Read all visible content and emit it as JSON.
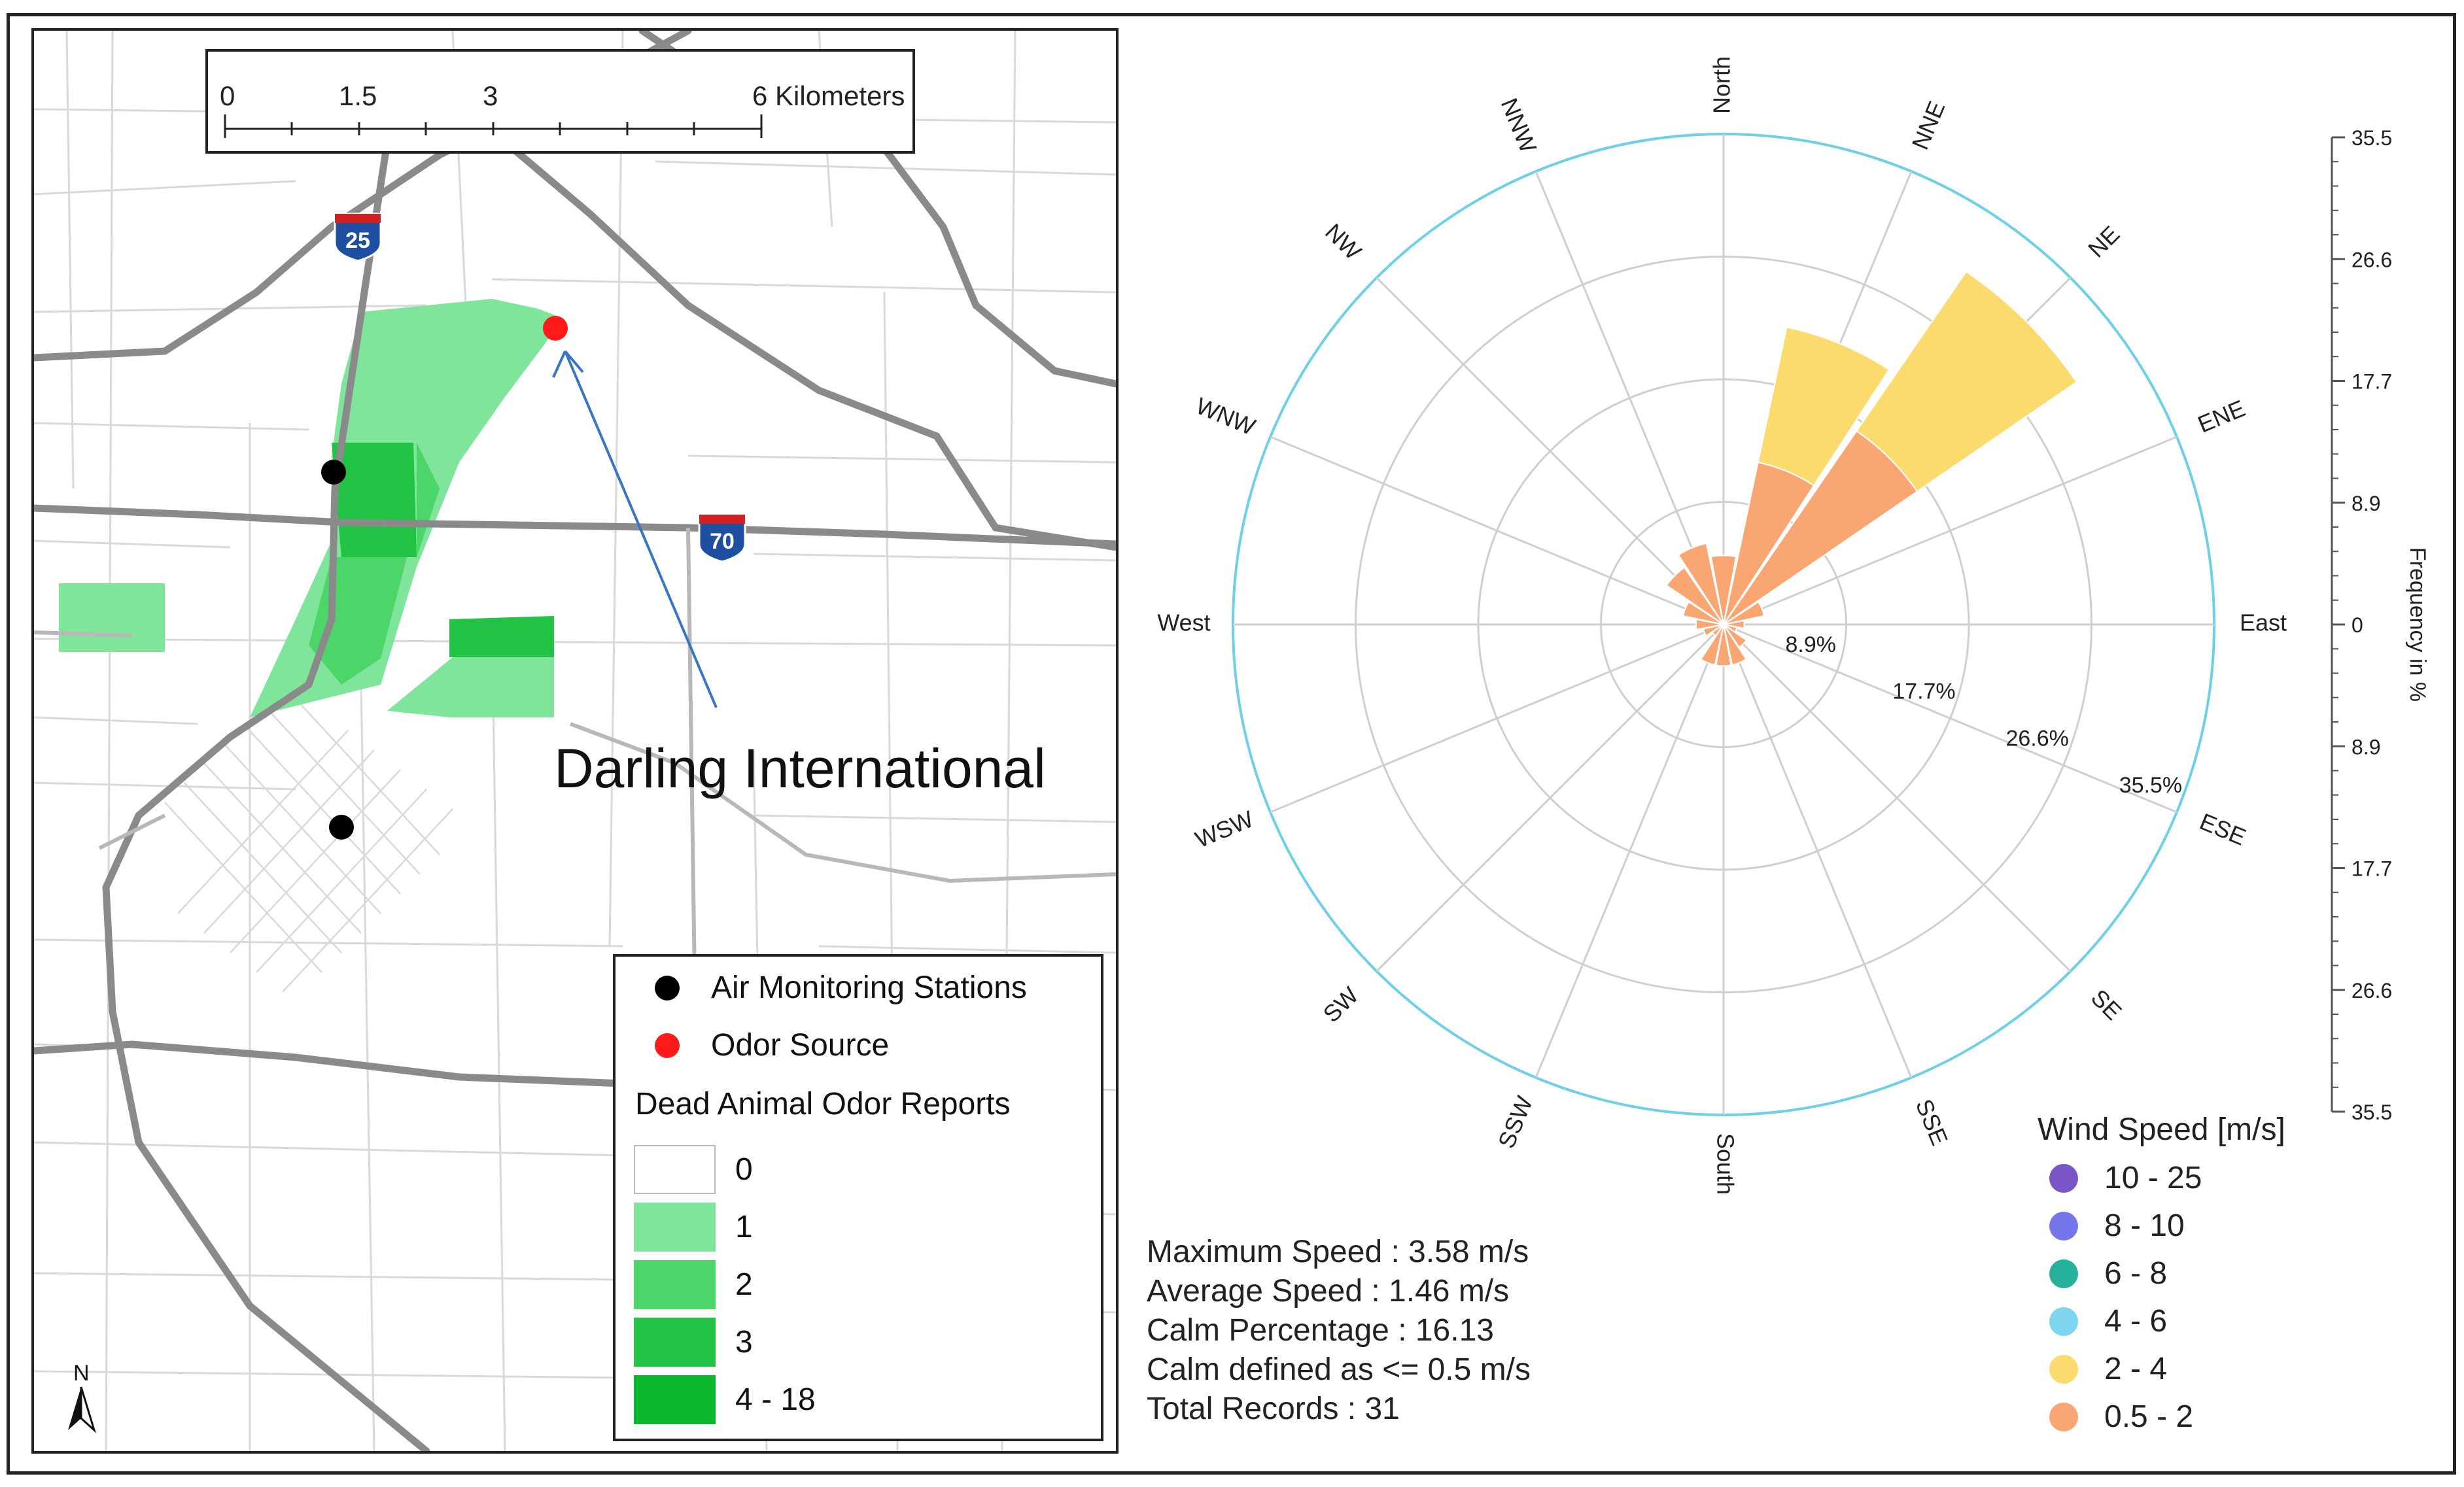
{
  "map": {
    "scale_bar": {
      "ticks": [
        "0",
        "1.5",
        "3",
        "6 Kilometers"
      ]
    },
    "highway_shields": [
      "25",
      "70"
    ],
    "annotation": "Darling International",
    "north_label": "N",
    "legend": {
      "air_monitoring": "Air Monitoring Stations",
      "odor_source": "Odor Source",
      "reports_title": "Dead Animal Odor Reports",
      "classes": [
        {
          "label": "0",
          "color": "#ffffff"
        },
        {
          "label": "1",
          "color": "#7fe59a"
        },
        {
          "label": "2",
          "color": "#4cd66a"
        },
        {
          "label": "3",
          "color": "#22c244"
        },
        {
          "label": "4 - 18",
          "color": "#0ab82e"
        }
      ]
    }
  },
  "chart_data": {
    "type": "wind-rose",
    "directions": [
      "North",
      "NNE",
      "NE",
      "ENE",
      "East",
      "ESE",
      "SE",
      "SSE",
      "South",
      "SSW",
      "SW",
      "WSW",
      "West",
      "WNW",
      "NW",
      "NNW"
    ],
    "ring_labels": [
      "8.9%",
      "17.7%",
      "26.6%",
      "35.5%"
    ],
    "rmax": 35.5,
    "speed_bins": [
      {
        "name": "0.5 - 2",
        "color": "#f9a673",
        "values": [
          5,
          12,
          17,
          3,
          1.5,
          1,
          2,
          3,
          3,
          3,
          1,
          1.5,
          2,
          3,
          5,
          6
        ]
      },
      {
        "name": "2 - 4",
        "color": "#fbdb6e",
        "values": [
          0,
          10,
          14,
          0,
          0,
          0,
          0,
          0,
          0,
          0,
          0,
          0,
          0,
          0,
          0,
          0
        ]
      },
      {
        "name": "4 - 6",
        "color": "#7dd6ee",
        "values": []
      },
      {
        "name": "6 - 8",
        "color": "#24b39a",
        "values": []
      },
      {
        "name": "8 - 10",
        "color": "#7575ec",
        "values": []
      },
      {
        "name": "10 - 25",
        "color": "#7a55c6",
        "values": []
      }
    ],
    "frequency_axis": {
      "label": "Frequency in %",
      "ticks": [
        "35.5",
        "26.6",
        "17.7",
        "8.9",
        "0",
        "8.9",
        "17.7",
        "26.6",
        "35.5"
      ]
    },
    "legend_title": "Wind Speed [m/s]",
    "legend_entries": [
      "10 - 25",
      "8 - 10",
      "6 - 8",
      "4 - 6",
      "2 - 4",
      "0.5 - 2"
    ],
    "legend_colors": [
      "#7a55c6",
      "#7575ec",
      "#24b39a",
      "#7dd6ee",
      "#fbdb6e",
      "#f9a673"
    ]
  },
  "stats": [
    "Maximum Speed : 3.58 m/s",
    "Average Speed : 1.46 m/s",
    "Calm Percentage : 16.13",
    "Calm defined as <= 0.5 m/s",
    "Total Records : 31"
  ]
}
